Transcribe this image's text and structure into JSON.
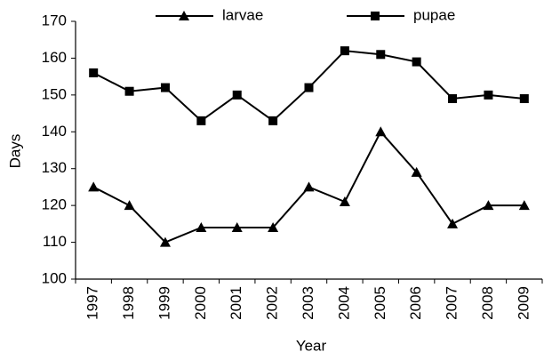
{
  "chart_data": {
    "type": "line",
    "x_label": "Year",
    "y_label": "Days",
    "categories": [
      "1997",
      "1998",
      "1999",
      "2000",
      "2001",
      "2002",
      "2003",
      "2004",
      "2005",
      "2006",
      "2007",
      "2008",
      "2009"
    ],
    "series": [
      {
        "name": "larvae",
        "color": "#000000",
        "marker": "triangle",
        "values": [
          125,
          120,
          110,
          114,
          114,
          114,
          125,
          121,
          140,
          129,
          115,
          120,
          120
        ]
      },
      {
        "name": "pupae",
        "color": "#000000",
        "marker": "square",
        "values": [
          156,
          151,
          152,
          143,
          150,
          143,
          152,
          162,
          161,
          159,
          149,
          150,
          149
        ]
      }
    ],
    "ylim": [
      100,
      170
    ],
    "yticks": [
      100,
      110,
      120,
      130,
      140,
      150,
      160,
      170
    ],
    "grid": false,
    "legend": "top"
  }
}
